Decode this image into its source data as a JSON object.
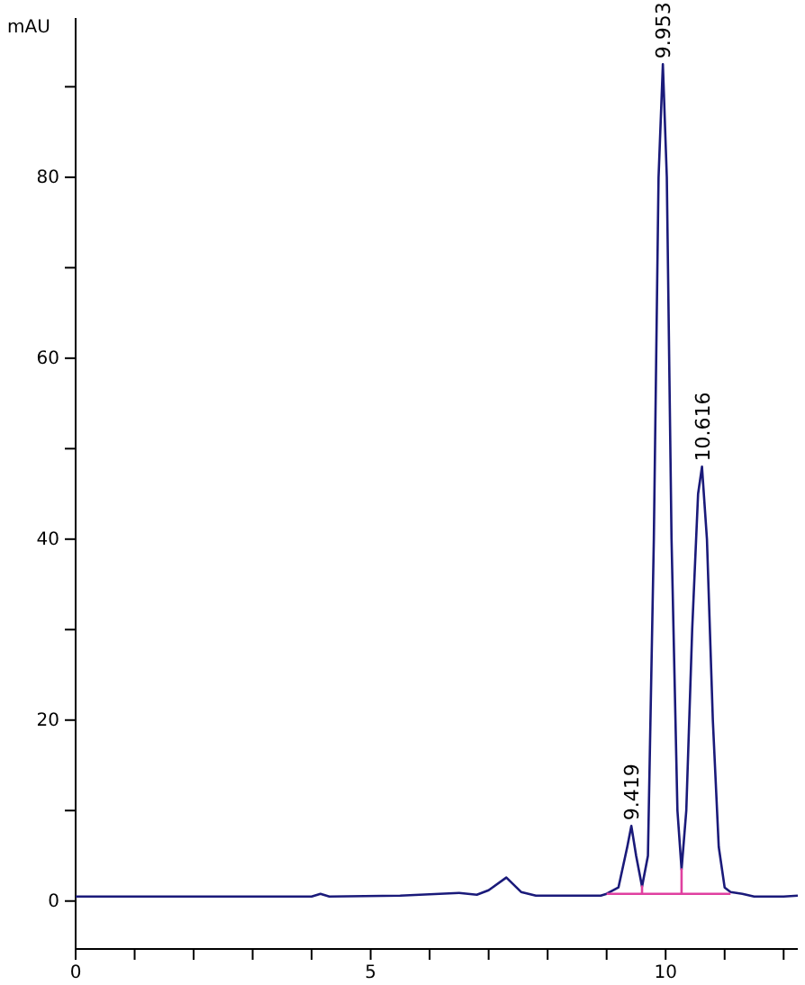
{
  "chart_data": {
    "type": "line",
    "ylabel": "mAU",
    "xlim": [
      0,
      12.24
    ],
    "ylim": [
      -5.3,
      97.6
    ],
    "xticks": [
      0,
      {
        "value": 1,
        "label": null
      },
      {
        "value": 2,
        "label": null
      },
      {
        "value": 3,
        "label": null
      },
      {
        "value": 4,
        "label": null
      },
      5,
      {
        "value": 6,
        "label": null
      },
      {
        "value": 7,
        "label": null
      },
      {
        "value": 8,
        "label": null
      },
      {
        "value": 9,
        "label": null
      },
      10,
      {
        "value": 11,
        "label": null
      },
      {
        "value": 12,
        "label": null
      }
    ],
    "yticks": [
      0,
      {
        "value": 10,
        "label": null
      },
      20,
      {
        "value": 30,
        "label": null
      },
      40,
      {
        "value": 50,
        "label": null
      },
      60,
      {
        "value": 70,
        "label": null
      },
      80,
      {
        "value": 90,
        "label": null
      }
    ],
    "grid": false,
    "marker": "none",
    "line_style": "solid",
    "series": [
      {
        "color": "#1a1a7a",
        "x": [
          0,
          4.0,
          4.15,
          4.3,
          5.5,
          6.5,
          6.8,
          7.0,
          7.3,
          7.55,
          7.8,
          8.9,
          9.0,
          9.2,
          9.35,
          9.419,
          9.5,
          9.6,
          9.7,
          9.8,
          9.88,
          9.953,
          10.02,
          10.1,
          10.2,
          10.27,
          10.35,
          10.45,
          10.55,
          10.616,
          10.7,
          10.8,
          10.9,
          11.0,
          11.1,
          11.3,
          11.5,
          12.0,
          12.24
        ],
        "values": [
          0.5,
          0.5,
          0.8,
          0.5,
          0.6,
          0.9,
          0.7,
          1.2,
          2.6,
          1.0,
          0.6,
          0.6,
          0.8,
          1.5,
          6,
          8.3,
          5,
          1.6,
          5,
          40,
          80,
          92.5,
          80,
          40,
          10,
          3.5,
          10,
          30,
          45,
          48,
          40,
          20,
          6,
          1.5,
          1.0,
          0.8,
          0.5,
          0.5,
          0.6
        ]
      },
      {
        "color": "#e040a0",
        "x": [
          9.0,
          9.6,
          9.6,
          9.6,
          10.27,
          10.27,
          10.27,
          11.1
        ],
        "values": [
          0.8,
          0.8,
          1.6,
          0.8,
          0.8,
          3.5,
          0.8,
          0.8
        ]
      }
    ],
    "annotations": [
      {
        "text": "9.419",
        "x": 9.419,
        "y": 8.3
      },
      {
        "text": "9.953",
        "x": 9.953,
        "y": 92.5
      },
      {
        "text": "10.616",
        "x": 10.616,
        "y": 48
      }
    ]
  }
}
